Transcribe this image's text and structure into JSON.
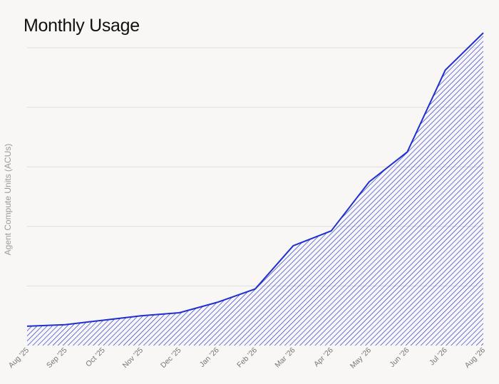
{
  "chart_data": {
    "type": "area",
    "title": "Monthly Usage",
    "xlabel": "",
    "ylabel": "Agent Compute Units (ACUs)",
    "categories": [
      "Aug '25",
      "Sep '25",
      "Oct '25",
      "Nov '25",
      "Dec '25",
      "Jan '26",
      "Feb '26",
      "Mar '26",
      "Apr '26",
      "May '26",
      "Jun '26",
      "Jul '26",
      "Aug '26"
    ],
    "values": [
      6.5,
      7,
      8.5,
      10,
      11,
      14.5,
      19,
      33.5,
      38.5,
      55,
      65,
      92.5,
      105
    ],
    "ylim": [
      0,
      100
    ],
    "gridlines": [
      20,
      40,
      60,
      80,
      100
    ],
    "grid": true,
    "y_tick_labels_shown": false,
    "fill_pattern": "diagonal-hatch",
    "colors": {
      "line": "#1f2fd0",
      "hatch": "#1f2fd0",
      "grid": "#dcdcdc",
      "background": "#f8f7f5"
    }
  }
}
